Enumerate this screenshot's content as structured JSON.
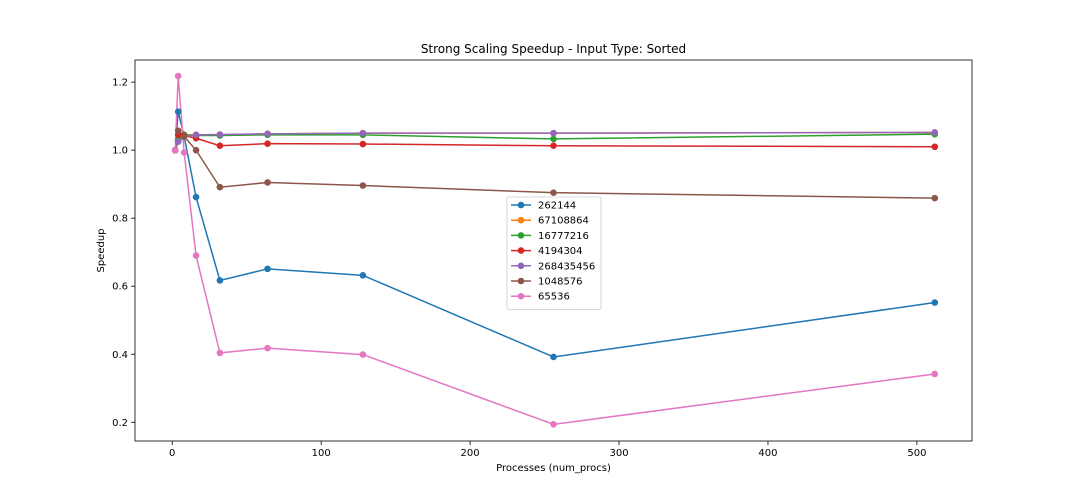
{
  "chart_data": {
    "type": "line",
    "title": "Strong Scaling Speedup - Input Type: Sorted",
    "xlabel": "Processes (num_procs)",
    "ylabel": "Speedup",
    "xlim": [
      -25,
      537
    ],
    "ylim": [
      0.145,
      1.265
    ],
    "xticks": [
      0,
      100,
      200,
      300,
      400,
      500
    ],
    "yticks": [
      0.2,
      0.4,
      0.6,
      0.8,
      1.0,
      1.2
    ],
    "ytick_labels": [
      "0.2",
      "0.4",
      "0.6",
      "0.8",
      "1.0",
      "1.2"
    ],
    "grid": false,
    "legend_position": "center",
    "x": [
      2,
      4,
      8,
      16,
      32,
      64,
      128,
      256,
      512
    ],
    "series": [
      {
        "name": "262144",
        "color": "#1f77b4",
        "values": [
          1.0,
          1.113,
          1.04,
          0.862,
          0.617,
          0.651,
          0.632,
          0.392,
          0.552
        ]
      },
      {
        "name": "67108864",
        "color": "#ff7f0e",
        "values": [
          1.0,
          1.03,
          1.045,
          1.045,
          1.045,
          1.048,
          1.05,
          1.05,
          1.052
        ]
      },
      {
        "name": "16777216",
        "color": "#2ca02c",
        "values": [
          1.0,
          1.03,
          1.045,
          1.043,
          1.043,
          1.045,
          1.045,
          1.033,
          1.047
        ]
      },
      {
        "name": "4194304",
        "color": "#d62728",
        "values": [
          1.0,
          1.045,
          1.043,
          1.035,
          1.013,
          1.019,
          1.018,
          1.013,
          1.01
        ]
      },
      {
        "name": "268435456",
        "color": "#9467bd",
        "values": [
          1.0,
          1.025,
          1.04,
          1.045,
          1.046,
          1.048,
          1.05,
          1.05,
          1.052
        ]
      },
      {
        "name": "1048576",
        "color": "#8c564b",
        "values": [
          1.0,
          1.057,
          1.04,
          1.0,
          0.891,
          0.905,
          0.896,
          0.875,
          0.859
        ]
      },
      {
        "name": "65536",
        "color": "#e377c2",
        "values": [
          1.0,
          1.218,
          0.993,
          0.69,
          0.404,
          0.418,
          0.399,
          0.194,
          0.342
        ]
      }
    ]
  }
}
